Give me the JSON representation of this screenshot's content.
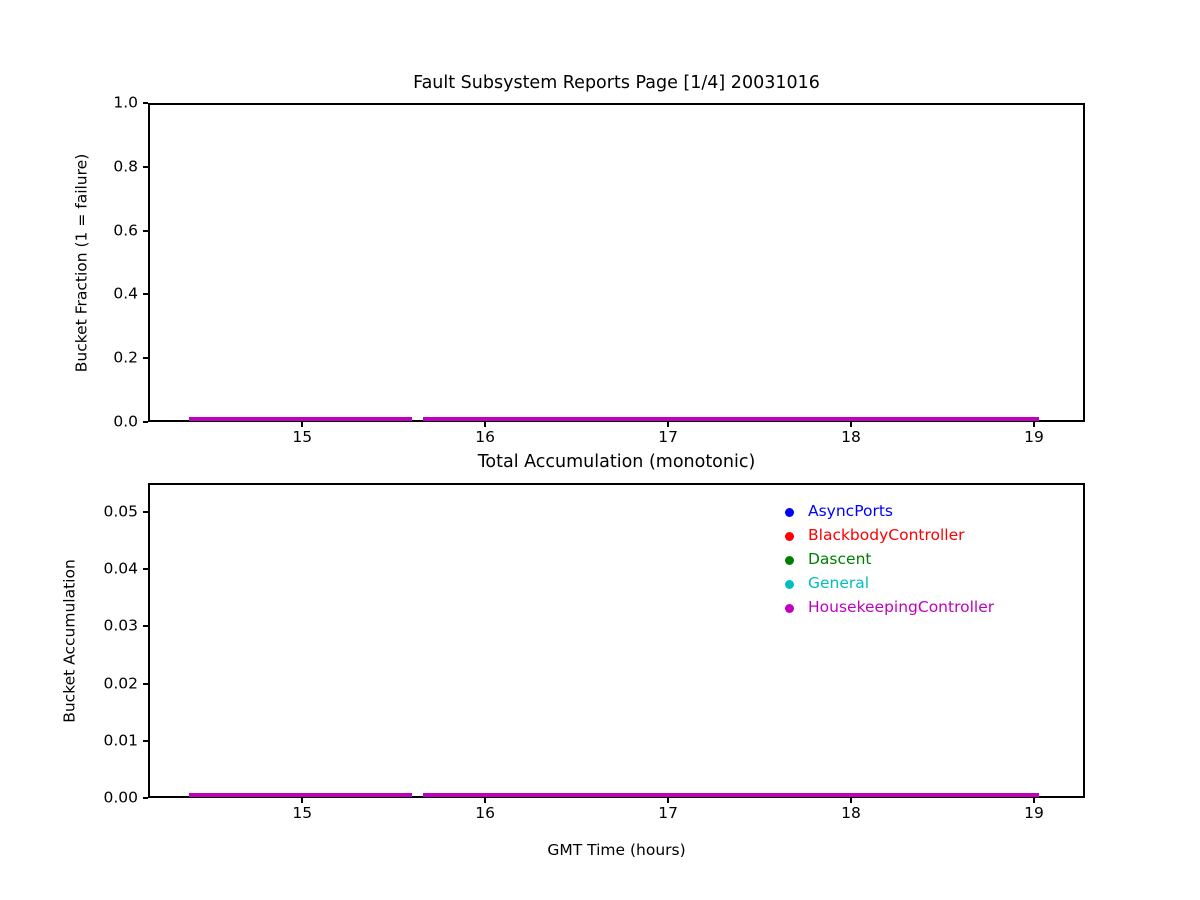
{
  "figure": {
    "background": "#ffffff",
    "text_color": "#000000",
    "spine_color": "#000000"
  },
  "chart_data": [
    {
      "type": "line",
      "title": "Fault Subsystem Reports Page [1/4] 20031016",
      "xlabel": "",
      "ylabel": "Bucket Fraction (1 = failure)",
      "xlim": [
        14.157,
        19.279
      ],
      "ylim": [
        0,
        1.0
      ],
      "grid": false,
      "legend": null,
      "xticks": [
        {
          "value": 15,
          "label": "15"
        },
        {
          "value": 16,
          "label": "16"
        },
        {
          "value": 17,
          "label": "17"
        },
        {
          "value": 18,
          "label": "18"
        },
        {
          "value": 19,
          "label": "19"
        }
      ],
      "yticks": [
        {
          "value": 0.0,
          "label": "0.0"
        },
        {
          "value": 0.2,
          "label": "0.2"
        },
        {
          "value": 0.4,
          "label": "0.4"
        },
        {
          "value": 0.6,
          "label": "0.6"
        },
        {
          "value": 0.8,
          "label": "0.8"
        },
        {
          "value": 1.0,
          "label": "1.0"
        }
      ],
      "series": [
        {
          "name": "AsyncPorts",
          "color": "#0000ff",
          "segments": [
            {
              "x": [
                14.38,
                15.6
              ],
              "y": [
                0,
                0
              ]
            },
            {
              "x": [
                15.66,
                19.03
              ],
              "y": [
                0,
                0
              ]
            }
          ]
        },
        {
          "name": "BlackbodyController",
          "color": "#ff0000",
          "segments": [
            {
              "x": [
                14.38,
                15.6
              ],
              "y": [
                0,
                0
              ]
            },
            {
              "x": [
                15.66,
                19.03
              ],
              "y": [
                0,
                0
              ]
            }
          ]
        },
        {
          "name": "Dascent",
          "color": "#008000",
          "segments": [
            {
              "x": [
                14.38,
                15.6
              ],
              "y": [
                0,
                0
              ]
            },
            {
              "x": [
                15.66,
                19.03
              ],
              "y": [
                0,
                0
              ]
            }
          ]
        },
        {
          "name": "General",
          "color": "#00bfbf",
          "segments": [
            {
              "x": [
                14.38,
                15.6
              ],
              "y": [
                0,
                0
              ]
            },
            {
              "x": [
                15.66,
                19.03
              ],
              "y": [
                0,
                0
              ]
            }
          ]
        },
        {
          "name": "HousekeepingController",
          "color": "#bf00bf",
          "segments": [
            {
              "x": [
                14.38,
                15.6
              ],
              "y": [
                0,
                0
              ]
            },
            {
              "x": [
                15.66,
                19.03
              ],
              "y": [
                0,
                0
              ]
            }
          ]
        }
      ]
    },
    {
      "type": "line",
      "title": "Total Accumulation (monotonic)",
      "xlabel": "GMT Time (hours)",
      "ylabel": "Bucket Accumulation",
      "xlim": [
        14.157,
        19.279
      ],
      "ylim": [
        0,
        0.0551
      ],
      "grid": false,
      "legend": {
        "position": "upper-right",
        "frame": false,
        "entries": [
          "AsyncPorts",
          "BlackbodyController",
          "Dascent",
          "General",
          "HousekeepingController"
        ]
      },
      "xticks": [
        {
          "value": 15,
          "label": "15"
        },
        {
          "value": 16,
          "label": "16"
        },
        {
          "value": 17,
          "label": "17"
        },
        {
          "value": 18,
          "label": "18"
        },
        {
          "value": 19,
          "label": "19"
        }
      ],
      "yticks": [
        {
          "value": 0.0,
          "label": "0.00"
        },
        {
          "value": 0.01,
          "label": "0.01"
        },
        {
          "value": 0.02,
          "label": "0.02"
        },
        {
          "value": 0.03,
          "label": "0.03"
        },
        {
          "value": 0.04,
          "label": "0.04"
        },
        {
          "value": 0.05,
          "label": "0.05"
        }
      ],
      "series": [
        {
          "name": "AsyncPorts",
          "color": "#0000ff",
          "segments": [
            {
              "x": [
                14.38,
                15.6
              ],
              "y": [
                0,
                0
              ]
            },
            {
              "x": [
                15.66,
                19.03
              ],
              "y": [
                0,
                0
              ]
            }
          ]
        },
        {
          "name": "BlackbodyController",
          "color": "#ff0000",
          "segments": [
            {
              "x": [
                14.38,
                15.6
              ],
              "y": [
                0,
                0
              ]
            },
            {
              "x": [
                15.66,
                19.03
              ],
              "y": [
                0,
                0
              ]
            }
          ]
        },
        {
          "name": "Dascent",
          "color": "#008000",
          "segments": [
            {
              "x": [
                14.38,
                15.6
              ],
              "y": [
                0,
                0
              ]
            },
            {
              "x": [
                15.66,
                19.03
              ],
              "y": [
                0,
                0
              ]
            }
          ]
        },
        {
          "name": "General",
          "color": "#00bfbf",
          "segments": [
            {
              "x": [
                14.38,
                15.6
              ],
              "y": [
                0,
                0
              ]
            },
            {
              "x": [
                15.66,
                19.03
              ],
              "y": [
                0,
                0
              ]
            }
          ]
        },
        {
          "name": "HousekeepingController",
          "color": "#bf00bf",
          "segments": [
            {
              "x": [
                14.38,
                15.6
              ],
              "y": [
                0,
                0
              ]
            },
            {
              "x": [
                15.66,
                19.03
              ],
              "y": [
                0,
                0
              ]
            }
          ]
        }
      ]
    }
  ]
}
